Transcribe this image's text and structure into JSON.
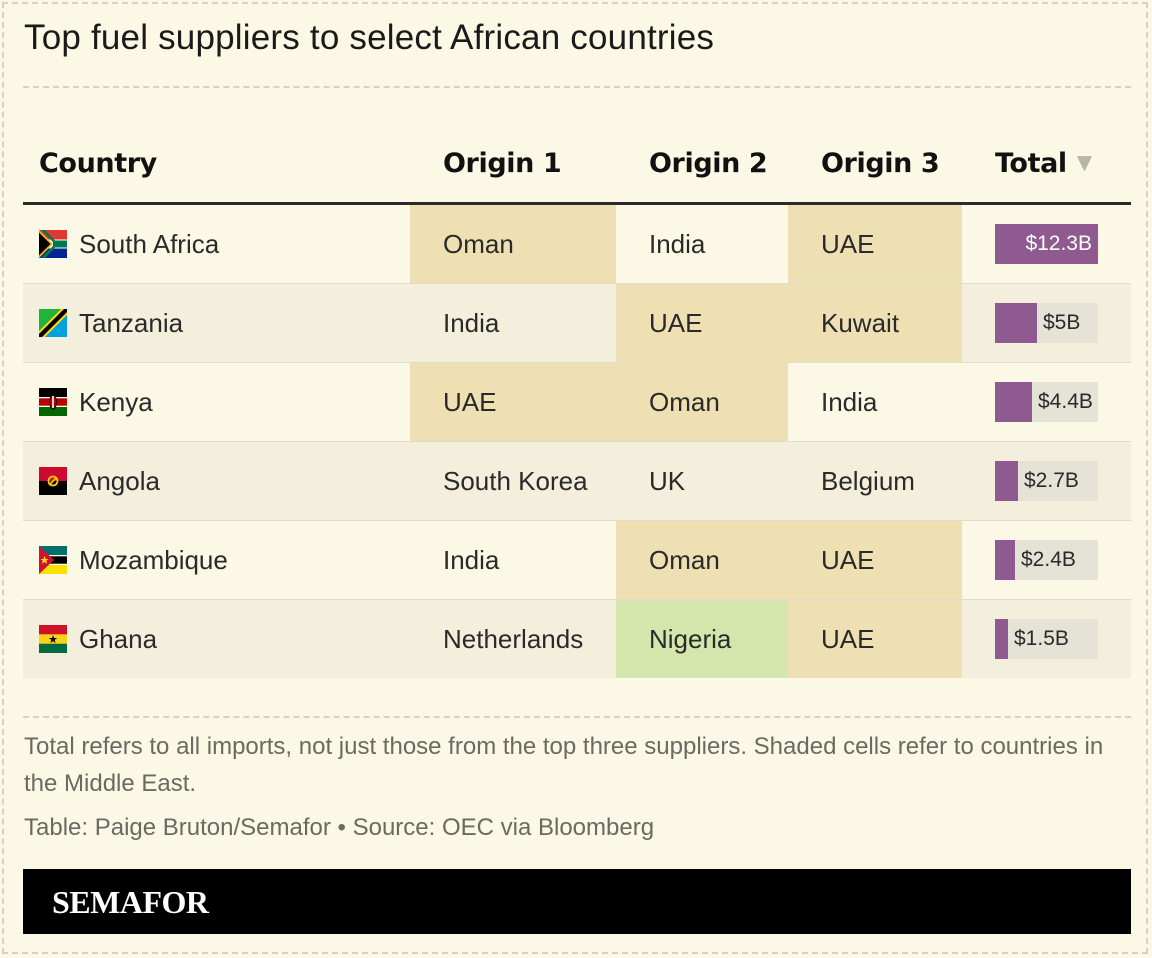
{
  "title": "Top fuel suppliers to select African countries",
  "chart_data": {
    "type": "table",
    "columns": [
      "Country",
      "Origin 1",
      "Origin 2",
      "Origin 3",
      "Total"
    ],
    "sort": {
      "column": "Total",
      "direction": "descending",
      "icon": "sort-down-icon"
    },
    "rows": [
      {
        "country": "South Africa",
        "flag": "south-africa-flag-icon",
        "origin1": "Oman",
        "origin2": "India",
        "origin3": "UAE",
        "total": 12.3,
        "total_label": "$12.3B",
        "shade": [
          "me",
          "",
          "me"
        ]
      },
      {
        "country": "Tanzania",
        "flag": "tanzania-flag-icon",
        "origin1": "India",
        "origin2": "UAE",
        "origin3": "Kuwait",
        "total": 5,
        "total_label": "$5B",
        "shade": [
          "",
          "me",
          "me"
        ]
      },
      {
        "country": "Kenya",
        "flag": "kenya-flag-icon",
        "origin1": "UAE",
        "origin2": "Oman",
        "origin3": "India",
        "total": 4.4,
        "total_label": "$4.4B",
        "shade": [
          "me",
          "me",
          ""
        ]
      },
      {
        "country": "Angola",
        "flag": "angola-flag-icon",
        "origin1": "South Korea",
        "origin2": "UK",
        "origin3": "Belgium",
        "total": 2.7,
        "total_label": "$2.7B",
        "shade": [
          "",
          "",
          ""
        ]
      },
      {
        "country": "Mozambique",
        "flag": "mozambique-flag-icon",
        "origin1": "India",
        "origin2": "Oman",
        "origin3": "UAE",
        "total": 2.4,
        "total_label": "$2.4B",
        "shade": [
          "",
          "me",
          "me"
        ]
      },
      {
        "country": "Ghana",
        "flag": "ghana-flag-icon",
        "origin1": "Netherlands",
        "origin2": "Nigeria",
        "origin3": "UAE",
        "total": 1.5,
        "total_label": "$1.5B",
        "shade": [
          "",
          "ng",
          "me"
        ]
      }
    ],
    "total_max": 12.3,
    "colors": {
      "bar": "#8e5a8f",
      "bar_track": "#e5e2d6",
      "middle_east": "#efe0b3",
      "nigeria": "#d4e6ac"
    }
  },
  "notes": "Total refers to all imports, not just those from the top three suppliers. Shaded cells refer to countries in the Middle East.",
  "source": "Table: Paige Bruton/Semafor • Source: OEC via Bloomberg",
  "brand": "SEMAFOR"
}
